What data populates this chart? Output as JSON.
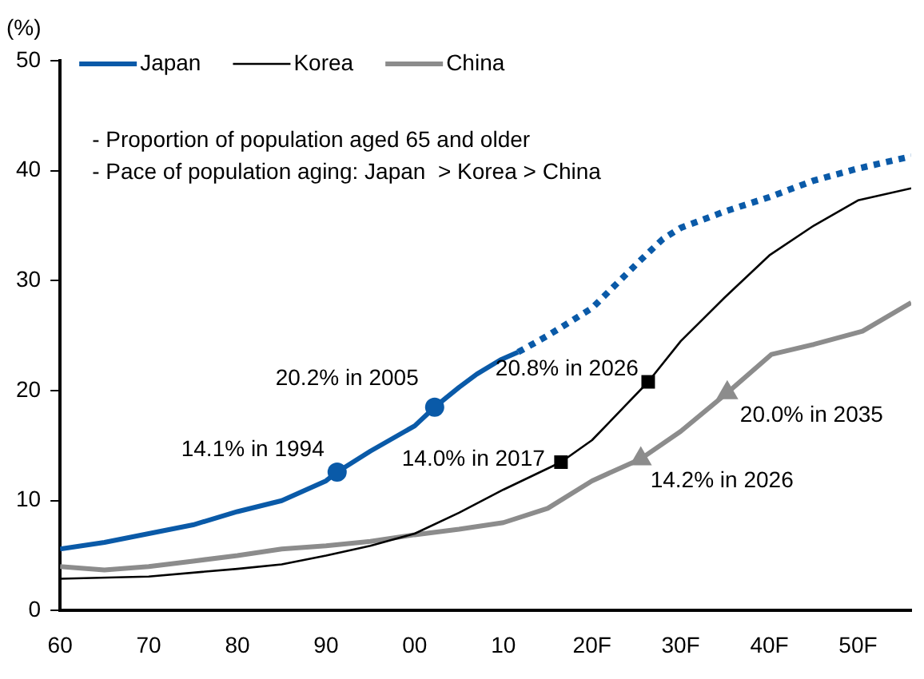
{
  "chart_data": {
    "type": "line",
    "ylabel": "(%)",
    "xlim": [
      "1960",
      "2056"
    ],
    "ylim": [
      0,
      50
    ],
    "yticks": [
      0,
      10,
      20,
      30,
      40,
      50
    ],
    "xticks": [
      {
        "value": "1960",
        "label": "60"
      },
      {
        "value": "1970",
        "label": "70"
      },
      {
        "value": "1980",
        "label": "80"
      },
      {
        "value": "1990",
        "label": "90"
      },
      {
        "value": "2000",
        "label": "00"
      },
      {
        "value": "2010",
        "label": "10"
      },
      {
        "value": "2020",
        "label": "20F"
      },
      {
        "value": "2030",
        "label": "30F"
      },
      {
        "value": "2040",
        "label": "40F"
      },
      {
        "value": "2050",
        "label": "50F"
      }
    ],
    "legend": "top left",
    "grid": false,
    "series": [
      {
        "name": "Japan",
        "color": "#0a5aa8",
        "line_style": "solid",
        "x": [
          "1960",
          "1965",
          "1970",
          "1975",
          "1980",
          "1985",
          "1990",
          "1991-04",
          "1995",
          "2000",
          "2002-04",
          "2005",
          "2007",
          "2009-09",
          "2011-09"
        ],
        "values": [
          5.6,
          6.2,
          7.0,
          7.8,
          9.0,
          10.0,
          11.8,
          12.6,
          14.5,
          16.8,
          18.5,
          20.3,
          21.5,
          22.8,
          23.5
        ]
      },
      {
        "color": "#0a5aa8",
        "line_style": "dotted",
        "x": [
          "2011-09",
          "2015",
          "2020",
          "2025",
          "2028",
          "2030",
          "2035",
          "2040",
          "2045",
          "2050",
          "2056"
        ],
        "values": [
          23.5,
          25.0,
          27.5,
          31.5,
          33.8,
          34.8,
          36.3,
          37.6,
          39.1,
          40.2,
          41.3
        ]
      },
      {
        "name": "Korea",
        "color": "#000000",
        "line_style": "solid",
        "x": [
          "1960",
          "1970",
          "1980",
          "1985",
          "1990",
          "1995",
          "2000",
          "2005",
          "2010",
          "2016-07",
          "2020",
          "2026-05",
          "2030",
          "2035",
          "2040",
          "2045",
          "2050",
          "2056"
        ],
        "values": [
          2.9,
          3.1,
          3.8,
          4.2,
          5.0,
          5.9,
          7.0,
          8.9,
          11.0,
          13.5,
          15.5,
          20.8,
          24.5,
          28.5,
          32.3,
          35.0,
          37.3,
          38.4
        ]
      },
      {
        "name": "China",
        "color": "#8c8c8c",
        "line_style": "solid",
        "x": [
          "1960",
          "1965",
          "1970",
          "1975",
          "1980",
          "1985",
          "1990",
          "1995",
          "2000",
          "2005",
          "2010",
          "2015",
          "2020",
          "2025-07",
          "2030",
          "2035-04",
          "2040-04",
          "2045",
          "2050-07",
          "2056"
        ],
        "values": [
          4.0,
          3.7,
          4.0,
          4.5,
          5.0,
          5.6,
          5.9,
          6.3,
          6.9,
          7.4,
          8.0,
          9.3,
          11.8,
          13.8,
          16.3,
          19.8,
          23.3,
          24.2,
          25.4,
          28.0
        ]
      },
      {
        "type": "scatter",
        "marker": "circle",
        "color": "#0a5aa8",
        "x": [
          "1991-04",
          "2002-04"
        ],
        "values": [
          12.6,
          18.5
        ]
      },
      {
        "type": "scatter",
        "marker": "square",
        "color": "#000000",
        "x": [
          "2016-07",
          "2026-05"
        ],
        "values": [
          13.5,
          20.8
        ]
      },
      {
        "type": "scatter",
        "marker": "triangle",
        "color": "#8c8c8c",
        "x": [
          "2025-07",
          "2035-04"
        ],
        "values": [
          13.8,
          19.8
        ]
      }
    ],
    "annotations": [
      "- Proportion of population aged 65 and older",
      "- Pace of population aging: Japan  > Korea > China",
      {
        "text": "14.1% in 1994",
        "x": "1991-04",
        "y": 12.6
      },
      {
        "text": "20.2% in 2005",
        "x": "2002-04",
        "y": 18.5
      },
      {
        "text": "14.0% in 2017",
        "x": "2016-07",
        "y": 13.5
      },
      {
        "text": "20.8% in 2026",
        "x": "2026-05",
        "y": 20.8
      },
      {
        "text": "14.2% in 2026",
        "x": "2025-07",
        "y": 13.8
      },
      {
        "text": "20.0% in 2035",
        "x": "2035-04",
        "y": 19.8
      }
    ]
  }
}
